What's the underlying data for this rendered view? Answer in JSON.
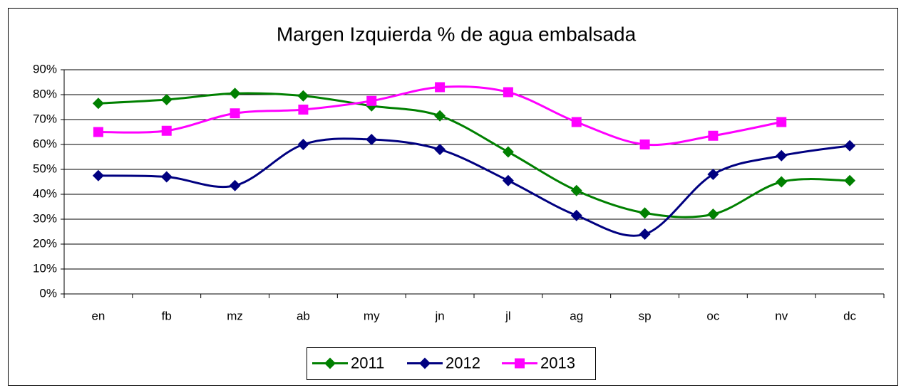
{
  "chart_data": {
    "type": "line",
    "title": "Margen Izquierda % de agua embalsada",
    "categories": [
      "en",
      "fb",
      "mz",
      "ab",
      "my",
      "jn",
      "jl",
      "ag",
      "sp",
      "oc",
      "nv",
      "dc"
    ],
    "series": [
      {
        "name": "2011",
        "color": "#008000",
        "marker": "diamond",
        "values": [
          76.5,
          78,
          80.5,
          79.5,
          75.5,
          71.5,
          57,
          41.5,
          32.5,
          32,
          45,
          45.5
        ]
      },
      {
        "name": "2012",
        "color": "#000080",
        "marker": "diamond",
        "values": [
          47.5,
          47,
          43.5,
          60,
          62,
          58,
          45.5,
          31.5,
          24,
          48,
          55.5,
          59.5
        ]
      },
      {
        "name": "2013",
        "color": "#ff00ff",
        "marker": "square",
        "values": [
          65,
          65.5,
          72.5,
          74,
          77.5,
          83,
          81,
          69,
          60,
          63.5,
          69,
          null
        ]
      }
    ],
    "ylim": [
      0,
      90
    ],
    "yticks": [
      {
        "value": 0,
        "label": "0%"
      },
      {
        "value": 10,
        "label": "10%"
      },
      {
        "value": 20,
        "label": "20%"
      },
      {
        "value": 30,
        "label": "30%"
      },
      {
        "value": 40,
        "label": "40%"
      },
      {
        "value": 50,
        "label": "50%"
      },
      {
        "value": 60,
        "label": "60%"
      },
      {
        "value": 70,
        "label": "70%"
      },
      {
        "value": 80,
        "label": "80%"
      },
      {
        "value": 90,
        "label": "90%"
      }
    ],
    "grid": true,
    "smooth": true,
    "legend": "bottom"
  }
}
